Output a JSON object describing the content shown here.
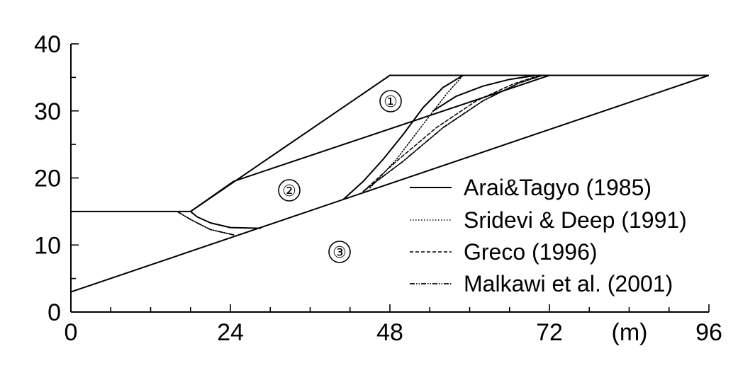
{
  "chart_data": {
    "type": "line",
    "title": "",
    "xlabel": "",
    "ylabel": "",
    "x_unit": "(m)",
    "xlim": [
      0,
      96
    ],
    "ylim": [
      0,
      40
    ],
    "x_ticks": [
      0,
      24,
      48,
      72,
      96
    ],
    "y_ticks": [
      0,
      10,
      20,
      30,
      40
    ],
    "regions": [
      "①",
      "②",
      "③"
    ],
    "legend_placement": "bottom-right",
    "series": [
      {
        "name": "Arai&Tagyo (1985)",
        "style": "solid"
      },
      {
        "name": "Sridevi & Deep (1991)",
        "style": "dotted"
      },
      {
        "name": "Greco (1996)",
        "style": "dashed"
      },
      {
        "name": "Malkawi et al. (2001)",
        "style": "dash-dot-dot"
      }
    ],
    "geometry": {
      "ground_surface": [
        [
          0,
          15
        ],
        [
          18,
          15
        ],
        [
          48,
          35.3
        ],
        [
          96,
          35.3
        ]
      ],
      "layer_boundary_12": [
        [
          18,
          15
        ],
        [
          24.5,
          19.5
        ],
        [
          72,
          35.3
        ]
      ],
      "layer_boundary_23": [
        [
          0,
          3
        ],
        [
          96,
          35.3
        ]
      ],
      "slip_arai_lower": [
        [
          18,
          15
        ],
        [
          19,
          14.2
        ],
        [
          21,
          13.3
        ],
        [
          24,
          12.6
        ],
        [
          28.5,
          12.5
        ]
      ],
      "slip_arai_upper": [
        [
          41,
          16.8
        ],
        [
          44,
          19.5
        ],
        [
          47,
          22.8
        ],
        [
          50,
          26.5
        ],
        [
          53,
          30.5
        ],
        [
          56,
          33.5
        ],
        [
          59,
          35.3
        ]
      ],
      "slip_arai_upper2": [
        [
          54.5,
          30
        ],
        [
          58,
          32.2
        ],
        [
          62,
          33.7
        ],
        [
          66,
          34.7
        ],
        [
          70,
          35.3
        ]
      ],
      "slip_sridevi": [
        [
          45,
          18.5
        ],
        [
          49,
          22.8
        ],
        [
          53,
          28
        ],
        [
          56.5,
          32.5
        ],
        [
          59,
          35.3
        ]
      ],
      "slip_greco": [
        [
          44,
          18
        ],
        [
          49,
          22.5
        ],
        [
          55,
          27.5
        ],
        [
          61,
          31.5
        ],
        [
          66.5,
          34
        ],
        [
          70.5,
          35.3
        ]
      ],
      "slip_malkawi_lower": [
        [
          16,
          15
        ],
        [
          18,
          13.8
        ],
        [
          21,
          12.3
        ],
        [
          24.5,
          11.5
        ]
      ],
      "slip_malkawi_upper": [
        [
          44,
          18
        ],
        [
          50,
          22.5
        ],
        [
          56,
          27.5
        ],
        [
          62,
          31.5
        ],
        [
          67.5,
          34.2
        ],
        [
          71,
          35.3
        ]
      ]
    }
  }
}
